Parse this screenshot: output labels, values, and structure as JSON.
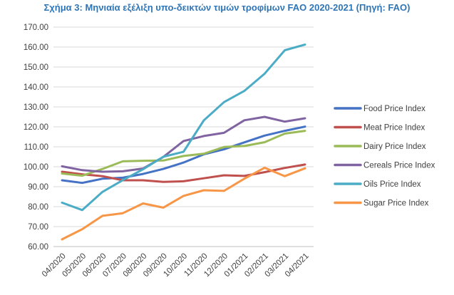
{
  "caption": "Σχήμα 3: Μηνιαία εξέλιξη υπο-δεικτών τιμών τροφίμων FAO 2020-2021 (Πηγή: FAO)",
  "chart_data": {
    "type": "line",
    "title": "",
    "xlabel": "",
    "ylabel": "",
    "x": [
      "04/2020",
      "05/2020",
      "06/2020",
      "07/2020",
      "08/2020",
      "09/2020",
      "10/2020",
      "11/2020",
      "12/2020",
      "01/2021",
      "02/2021",
      "03/2021",
      "04/2021"
    ],
    "ylim": [
      60,
      170
    ],
    "yticks": [
      60,
      70,
      80,
      90,
      100,
      110,
      120,
      130,
      140,
      150,
      160,
      170
    ],
    "ytick_labels": [
      "60.00",
      "70.00",
      "80.00",
      "90.00",
      "100.00",
      "110.00",
      "120.00",
      "130.00",
      "140.00",
      "150.00",
      "160.00",
      "170.00"
    ],
    "grid": "horizontal",
    "legend_position": "right",
    "series": [
      {
        "name": "Food Price Index",
        "color": "#4472c4",
        "values": [
          93.2,
          91.9,
          94.0,
          94.5,
          96.4,
          98.9,
          102.1,
          106.2,
          108.7,
          112.2,
          115.6,
          118.0,
          120.1
        ]
      },
      {
        "name": "Meat Price Index",
        "color": "#c0504d",
        "values": [
          97.5,
          96.2,
          95.3,
          93.2,
          93.2,
          92.4,
          92.7,
          94.2,
          95.7,
          95.4,
          97.3,
          99.4,
          101.1
        ]
      },
      {
        "name": "Dairy Price Index",
        "color": "#9bbb59",
        "values": [
          96.6,
          95.5,
          98.9,
          102.7,
          103.0,
          103.1,
          105.4,
          106.5,
          109.9,
          110.4,
          112.3,
          116.6,
          118.0
        ]
      },
      {
        "name": "Cereals Price Index",
        "color": "#8064a2",
        "values": [
          100.2,
          98.3,
          97.5,
          97.7,
          99.1,
          104.9,
          112.9,
          115.4,
          117.0,
          123.3,
          125.0,
          122.6,
          124.3
        ]
      },
      {
        "name": "Oils Price Index",
        "color": "#4bacc6",
        "values": [
          82.0,
          78.3,
          87.4,
          93.3,
          98.7,
          105.0,
          107.5,
          123.2,
          132.4,
          138.0,
          146.6,
          158.4,
          161.2
        ]
      },
      {
        "name": "Sugar Price Index",
        "color": "#f79646",
        "values": [
          63.6,
          68.7,
          75.4,
          76.7,
          81.6,
          79.5,
          85.4,
          88.2,
          87.9,
          94.0,
          99.5,
          95.3,
          99.2
        ]
      }
    ]
  }
}
